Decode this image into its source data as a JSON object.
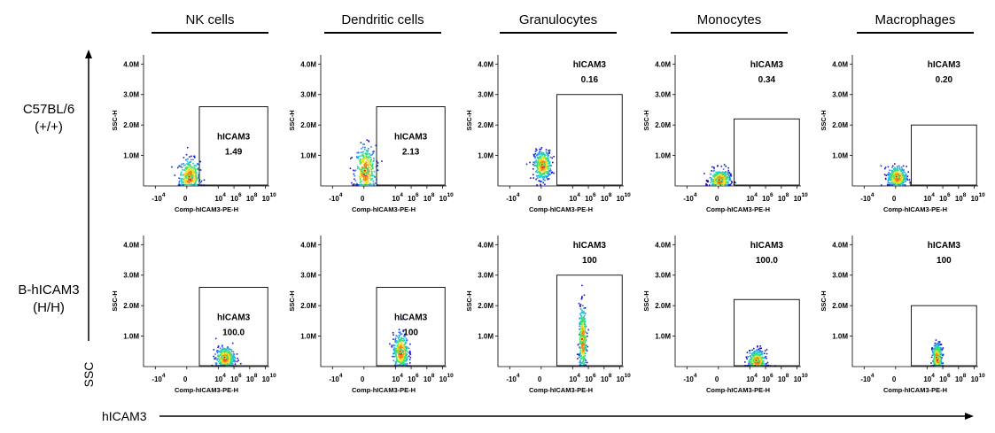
{
  "chart_data": {
    "type": "scatter",
    "columns": [
      "NK cells",
      "Dendritic cells",
      "Granulocytes",
      "Monocytes",
      "Macrophages"
    ],
    "rows": [
      {
        "line1": "C57BL/6",
        "line2": "(+/+)"
      },
      {
        "line1": "B-hICAM3",
        "line2": "(H/H)"
      }
    ],
    "x_axis_label": "Comp-hICAM3-PE-H",
    "y_axis_label": "SSC-H",
    "y_ticks": [
      "1.0M",
      "2.0M",
      "3.0M",
      "4.0M"
    ],
    "x_ticks": [
      {
        "base": "-10",
        "exp": "4"
      },
      {
        "base": "0",
        "exp": ""
      },
      {
        "base": "10",
        "exp": "4"
      },
      {
        "base": "10",
        "exp": "6"
      },
      {
        "base": "10",
        "exp": "8"
      },
      {
        "base": "10",
        "exp": "10"
      }
    ],
    "main_x_label": "hICAM3",
    "main_y_label": "SSC",
    "panels": [
      {
        "row": 0,
        "col": 0,
        "gate_name": "hICAM3",
        "gate_value": "1.49",
        "pop_x": 0.3,
        "pop_y": 0.3,
        "spread_x": 1.1,
        "spread_y": 0.5,
        "gate_x": [
          1.6,
          10.3
        ],
        "gate_y": [
          0,
          2.6
        ]
      },
      {
        "row": 0,
        "col": 1,
        "gate_name": "hICAM3",
        "gate_value": "2.13",
        "pop_x": 0.1,
        "pop_y": 0.5,
        "spread_x": 1.1,
        "spread_y": 0.7,
        "gate_x": [
          1.6,
          10.3
        ],
        "gate_y": [
          0,
          2.6
        ]
      },
      {
        "row": 0,
        "col": 2,
        "gate_name": "hICAM3",
        "gate_value": "0.16",
        "pop_x": 0.1,
        "pop_y": 0.7,
        "spread_x": 0.9,
        "spread_y": 0.4,
        "gate_x": [
          2.0,
          10.3
        ],
        "gate_y": [
          0,
          3.0
        ]
      },
      {
        "row": 0,
        "col": 3,
        "gate_name": "hICAM3",
        "gate_value": "0.34",
        "pop_x": 0.1,
        "pop_y": 0.2,
        "spread_x": 1.1,
        "spread_y": 0.3,
        "gate_x": [
          2.0,
          10.3
        ],
        "gate_y": [
          0,
          2.2
        ]
      },
      {
        "row": 0,
        "col": 4,
        "gate_name": "hICAM3",
        "gate_value": "0.20",
        "pop_x": 0.1,
        "pop_y": 0.3,
        "spread_x": 1.0,
        "spread_y": 0.3,
        "gate_x": [
          2.0,
          10.3
        ],
        "gate_y": [
          0,
          2.0
        ]
      },
      {
        "row": 1,
        "col": 0,
        "gate_name": "hICAM3",
        "gate_value": "100.0",
        "pop_x": 4.8,
        "pop_y": 0.3,
        "spread_x": 1.0,
        "spread_y": 0.3,
        "gate_x": [
          1.6,
          10.3
        ],
        "gate_y": [
          0,
          2.6
        ]
      },
      {
        "row": 1,
        "col": 1,
        "gate_name": "hICAM3",
        "gate_value": "100",
        "pop_x": 4.6,
        "pop_y": 0.5,
        "spread_x": 0.8,
        "spread_y": 0.5,
        "gate_x": [
          1.6,
          10.3
        ],
        "gate_y": [
          0,
          2.6
        ]
      },
      {
        "row": 1,
        "col": 2,
        "gate_name": "hICAM3",
        "gate_value": "100",
        "pop_x": 5.2,
        "pop_y": 0.9,
        "spread_x": 0.4,
        "spread_y": 0.9,
        "gate_x": [
          2.0,
          10.3
        ],
        "gate_y": [
          0,
          3.0
        ]
      },
      {
        "row": 1,
        "col": 3,
        "gate_name": "hICAM3",
        "gate_value": "100.0",
        "pop_x": 4.8,
        "pop_y": 0.2,
        "spread_x": 0.9,
        "spread_y": 0.3,
        "gate_x": [
          2.0,
          10.3
        ],
        "gate_y": [
          0,
          2.2
        ]
      },
      {
        "row": 1,
        "col": 4,
        "gate_name": "hICAM3",
        "gate_value": "100",
        "pop_x": 5.2,
        "pop_y": 0.3,
        "spread_x": 0.5,
        "spread_y": 0.4,
        "gate_x": [
          2.0,
          10.3
        ],
        "gate_y": [
          0,
          2.0
        ]
      }
    ],
    "axis_x_range": [
      -5.5,
      10.5
    ],
    "axis_y_range": [
      0,
      4.3
    ],
    "density_colors": [
      "#1515c8",
      "#2d7cf0",
      "#18c8c8",
      "#3ce070",
      "#f0e028",
      "#f08818",
      "#e01818"
    ]
  }
}
